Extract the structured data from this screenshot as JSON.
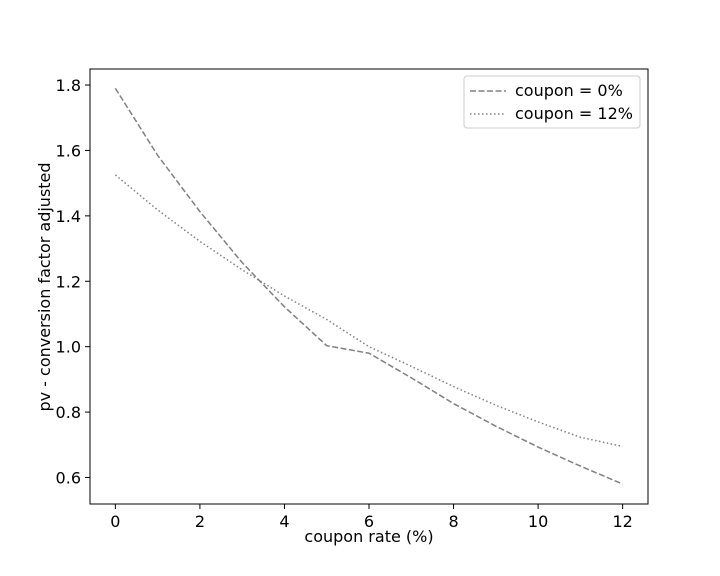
{
  "chart_data": {
    "type": "line",
    "title": "",
    "xlabel": "coupon rate (%)",
    "ylabel": "pv - conversion factor adjusted",
    "xlim": [
      -0.6,
      12.6
    ],
    "ylim": [
      0.519,
      1.849
    ],
    "xticks": [
      0,
      2,
      4,
      6,
      8,
      10,
      12
    ],
    "yticks": [
      0.6,
      0.8,
      1.0,
      1.2,
      1.4,
      1.6,
      1.8
    ],
    "xtick_labels": [
      "0",
      "2",
      "4",
      "6",
      "8",
      "10",
      "12"
    ],
    "ytick_labels": [
      "0.6",
      "0.8",
      "1.0",
      "1.2",
      "1.4",
      "1.6",
      "1.8"
    ],
    "grid": false,
    "legend_position": "top-right",
    "series": [
      {
        "name": "coupon = 0%",
        "style": "dashed",
        "color": "#808080",
        "x": [
          0,
          1,
          2,
          3,
          4,
          5,
          6,
          7,
          8,
          9,
          10,
          11,
          12
        ],
        "y": [
          1.79,
          1.585,
          1.413,
          1.257,
          1.122,
          1.003,
          0.98,
          0.905,
          0.826,
          0.757,
          0.693,
          0.635,
          0.58
        ]
      },
      {
        "name": "coupon = 12%",
        "style": "dotted",
        "color": "#808080",
        "x": [
          0,
          1,
          2,
          3,
          4,
          5,
          6,
          7,
          8,
          9,
          10,
          11,
          12
        ],
        "y": [
          1.525,
          1.418,
          1.322,
          1.235,
          1.155,
          1.083,
          1.0,
          0.94,
          0.878,
          0.821,
          0.77,
          0.723,
          0.695
        ]
      }
    ]
  }
}
